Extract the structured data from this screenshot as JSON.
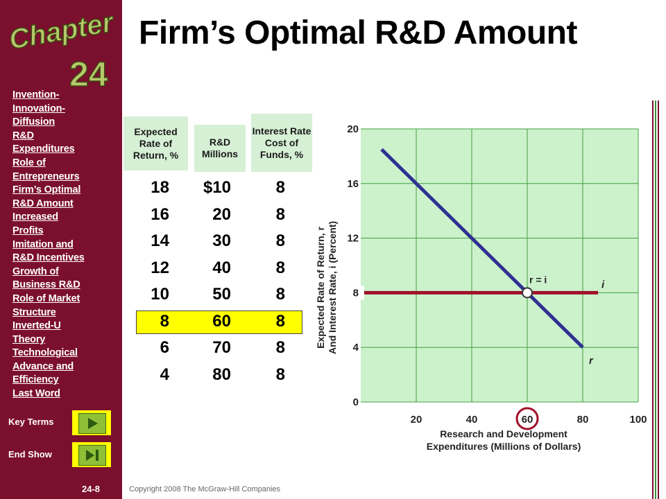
{
  "sidebar": {
    "chapter_word": "Chapter",
    "chapter_number": "24",
    "nav_items": [
      "Invention-",
      "Innovation-",
      "Diffusion",
      "R&D",
      "Expenditures",
      "Role of",
      "Entrepreneurs",
      "Firm’s Optimal",
      "R&D Amount",
      "Increased",
      "Profits",
      "Imitation and",
      "R&D Incentives",
      "Growth of",
      "Business R&D",
      "Role of Market",
      "Structure",
      "Inverted-U",
      "Theory",
      "Technological",
      "Advance and",
      "Efficiency",
      "Last Word"
    ],
    "key_terms_label": "Key Terms",
    "end_show_label": "End Show",
    "page_number": "24-8"
  },
  "footer": {
    "copyright": "Copyright 2008 The McGraw-Hill Companies"
  },
  "title": "Firm’s Optimal R&D Amount",
  "table": {
    "headers": {
      "expected_return": "Expected Rate of Return, %",
      "rd": "R&D Millions",
      "interest": "Interest Rate Cost of Funds, %"
    },
    "rows": [
      {
        "r": "18",
        "rd": "$10",
        "i": "8"
      },
      {
        "r": "16",
        "rd": "20",
        "i": "8"
      },
      {
        "r": "14",
        "rd": "30",
        "i": "8"
      },
      {
        "r": "12",
        "rd": "40",
        "i": "8"
      },
      {
        "r": "10",
        "rd": "50",
        "i": "8"
      },
      {
        "r": "8",
        "rd": "60",
        "i": "8"
      },
      {
        "r": "6",
        "rd": "70",
        "i": "8"
      },
      {
        "r": "4",
        "rd": "80",
        "i": "8"
      }
    ],
    "highlighted_row": 5
  },
  "chart_data": {
    "type": "line",
    "xlabel_lines": [
      "Research and Development",
      "Expenditures (Millions of Dollars)"
    ],
    "ylabel_lines": [
      "Expected Rate of Return, r",
      "And Interest Rate, i (Percent)"
    ],
    "xlim": [
      0,
      100
    ],
    "ylim": [
      0,
      20
    ],
    "x_ticks": [
      "20",
      "40",
      "60",
      "80",
      "100"
    ],
    "y_ticks": [
      "0",
      "4",
      "8",
      "12",
      "16",
      "20"
    ],
    "grid": true,
    "series": [
      {
        "name": "r",
        "color": "#2e3192",
        "points": [
          {
            "x": 10,
            "y": 18
          },
          {
            "x": 20,
            "y": 16
          },
          {
            "x": 30,
            "y": 14
          },
          {
            "x": 40,
            "y": 12
          },
          {
            "x": 50,
            "y": 10
          },
          {
            "x": 60,
            "y": 8
          },
          {
            "x": 70,
            "y": 6
          },
          {
            "x": 80,
            "y": 4
          }
        ]
      },
      {
        "name": "i",
        "color": "#a0102a",
        "points": [
          {
            "x": 0,
            "y": 8
          },
          {
            "x": 100,
            "y": 8
          }
        ]
      }
    ],
    "intersection": {
      "label": "r = i",
      "x": 60,
      "y": 8
    },
    "highlight_x_tick": "60",
    "highlight_y_tick": "8",
    "plot_background": "#ccf2cc",
    "grid_color": "#3f9f3f"
  }
}
